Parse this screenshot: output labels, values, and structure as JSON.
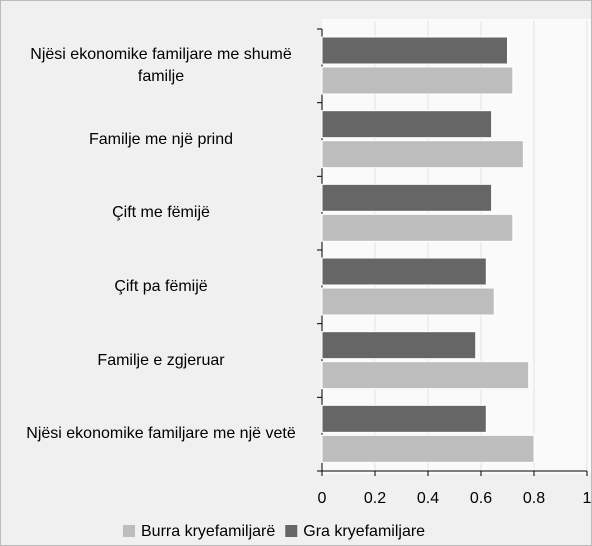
{
  "chart_data": {
    "type": "bar",
    "orientation": "horizontal",
    "categories": [
      "Njësi ekonomike familjare me shumë familje",
      "Familje me një prind",
      "Çift me fëmijë",
      "Çift pa fëmijë",
      "Familje e zgjeruar",
      "Njësi ekonomike familjare me një vetë"
    ],
    "series": [
      {
        "name": "Burra kryefamiljarë",
        "color": "#bdbdbd",
        "values": [
          0.72,
          0.76,
          0.72,
          0.65,
          0.78,
          0.8
        ]
      },
      {
        "name": "Gra kryefamiljare",
        "color": "#666666",
        "values": [
          0.7,
          0.64,
          0.64,
          0.62,
          0.58,
          0.62
        ]
      }
    ],
    "xlim": [
      0,
      1
    ],
    "xticks": [
      0,
      0.2,
      0.4,
      0.6,
      0.8,
      1
    ],
    "grid": true,
    "legend": "bottom"
  }
}
